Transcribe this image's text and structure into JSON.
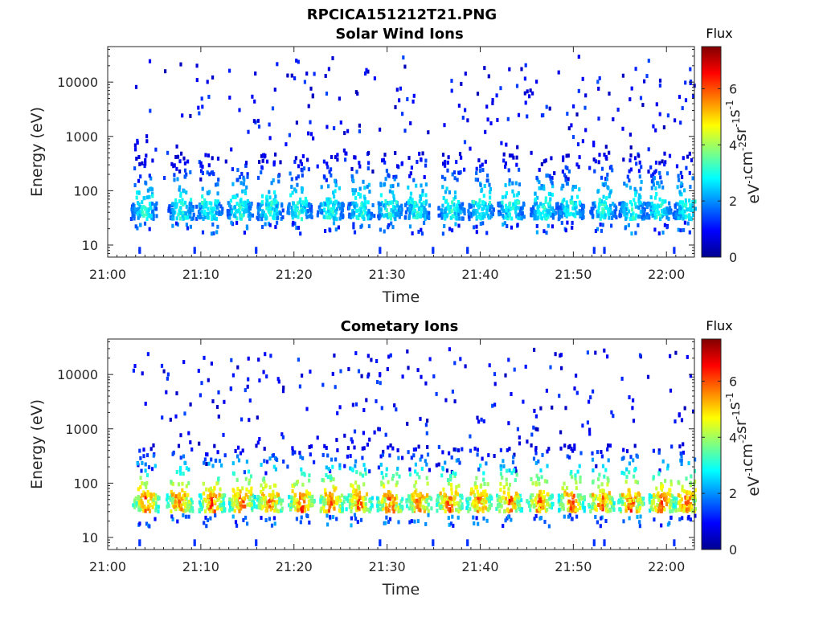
{
  "figure_title": "RPCICA151212T21.PNG",
  "colormap": [
    "#00008f",
    "#0000ff",
    "#0080ff",
    "#00ffff",
    "#80ff80",
    "#ffff00",
    "#ff8000",
    "#ff0000",
    "#800000"
  ],
  "chart_data": [
    {
      "type": "heatmap",
      "title": "Solar Wind Ions",
      "xlabel": "Time",
      "ylabel": "Energy (eV)",
      "x_range": [
        "21:00",
        "22:03"
      ],
      "x_ticks": [
        "21:00",
        "21:10",
        "21:20",
        "21:30",
        "21:40",
        "21:50",
        "22:00"
      ],
      "y_scale": "log",
      "y_range": [
        6,
        45000
      ],
      "y_ticks": [
        10,
        100,
        1000,
        10000
      ],
      "y_tick_labels": [
        "10",
        "100",
        "1000",
        "10000"
      ],
      "colorbar": {
        "title": "Flux",
        "label": "eV-1cm-2sr-1s-1",
        "range": [
          0,
          7.5
        ],
        "ticks": [
          0,
          2,
          4,
          6
        ],
        "tick_labels": [
          "0",
          "2",
          "4",
          "6"
        ]
      },
      "bursts_time_min": [
        3.8,
        7.8,
        10.8,
        14.1,
        17.3,
        20.4,
        23.8,
        27.1,
        30.1,
        33.1,
        36.8,
        40.0,
        43.2,
        46.7,
        49.6,
        53.1,
        56.2,
        59.0,
        62.0
      ],
      "core_energy_ev": [
        30,
        60
      ],
      "peak_flux": 3.6
    },
    {
      "type": "heatmap",
      "title": "Cometary Ions",
      "xlabel": "Time",
      "ylabel": "Energy (eV)",
      "x_range": [
        "21:00",
        "22:03"
      ],
      "x_ticks": [
        "21:00",
        "21:10",
        "21:20",
        "21:30",
        "21:40",
        "21:50",
        "22:00"
      ],
      "y_scale": "log",
      "y_range": [
        6,
        45000
      ],
      "y_ticks": [
        10,
        100,
        1000,
        10000
      ],
      "y_tick_labels": [
        "10",
        "100",
        "1000",
        "10000"
      ],
      "colorbar": {
        "title": "Flux",
        "label": "eV-1cm-2sr-1s-1",
        "range": [
          0,
          7.5
        ],
        "ticks": [
          0,
          2,
          4,
          6
        ],
        "tick_labels": [
          "0",
          "2",
          "4",
          "6"
        ]
      },
      "bursts_time_min": [
        4.0,
        7.6,
        11.1,
        14.3,
        17.3,
        20.7,
        23.9,
        26.9,
        30.2,
        33.3,
        36.6,
        39.8,
        43.0,
        46.3,
        49.7,
        52.9,
        56.1,
        59.4,
        62.0
      ],
      "core_energy_ev": [
        30,
        60
      ],
      "peak_flux": 6.8
    }
  ]
}
